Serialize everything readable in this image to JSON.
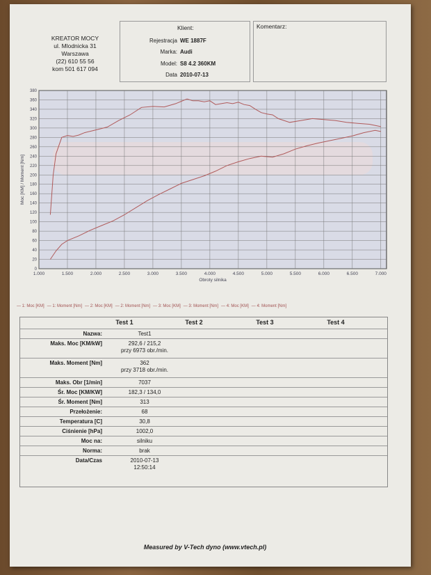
{
  "company": {
    "name": "KREATOR MOCY",
    "street": "ul. Mlodnicka 31",
    "city": "Warszawa",
    "phone": "(22) 610 55 56",
    "mobile": "kom 501 617 094"
  },
  "client": {
    "title": "Klient:",
    "rows": [
      {
        "label": "Rejestracja",
        "value": "WE 1887F"
      },
      {
        "label": "Marka:",
        "value": "Audi"
      },
      {
        "label": "Model:",
        "value": "S8 4.2 360KM"
      },
      {
        "label": "Data",
        "value": "2010-07-13"
      }
    ]
  },
  "comment_label": "Komentarz:",
  "chart_data": {
    "type": "line",
    "xlabel": "Obroty silnika",
    "ylabel": "Moc [KM] / Moment [Nm]",
    "xlim": [
      1000,
      7100
    ],
    "ylim": [
      0,
      380
    ],
    "x_ticks": [
      "1.000",
      "1.500",
      "2.000",
      "2.500",
      "3.000",
      "3.500",
      "4.000",
      "4.500",
      "5.000",
      "5.500",
      "6.000",
      "6.500",
      "7.000"
    ],
    "y_ticks": [
      0,
      20,
      40,
      60,
      80,
      100,
      120,
      140,
      160,
      180,
      200,
      220,
      240,
      260,
      280,
      300,
      320,
      340,
      360,
      380
    ],
    "grid": true,
    "series": [
      {
        "name": "1: Moment [Nm]",
        "color": "#b05a5a",
        "x": [
          1200,
          1250,
          1300,
          1400,
          1500,
          1600,
          1700,
          1800,
          1900,
          2000,
          2200,
          2400,
          2600,
          2800,
          3000,
          3200,
          3400,
          3500,
          3600,
          3700,
          3800,
          3900,
          4000,
          4100,
          4200,
          4300,
          4400,
          4500,
          4600,
          4700,
          4800,
          4900,
          5000,
          5100,
          5200,
          5400,
          5600,
          5800,
          6000,
          6200,
          6400,
          6600,
          6800,
          7000
        ],
        "y": [
          115,
          200,
          245,
          280,
          284,
          282,
          285,
          290,
          293,
          296,
          302,
          316,
          328,
          344,
          346,
          345,
          352,
          357,
          362,
          358,
          358,
          356,
          358,
          350,
          352,
          354,
          352,
          355,
          350,
          348,
          340,
          333,
          330,
          328,
          320,
          312,
          316,
          320,
          318,
          316,
          312,
          310,
          308,
          303
        ]
      },
      {
        "name": "1: Moc [KM]",
        "color": "#b05a5a",
        "x": [
          1200,
          1300,
          1400,
          1500,
          1700,
          1900,
          2100,
          2300,
          2500,
          2700,
          2900,
          3100,
          3300,
          3500,
          3700,
          3900,
          4100,
          4300,
          4500,
          4700,
          4900,
          5100,
          5300,
          5500,
          5700,
          5900,
          6100,
          6300,
          6500,
          6700,
          6900,
          7000
        ],
        "y": [
          20,
          38,
          52,
          60,
          70,
          82,
          92,
          102,
          115,
          130,
          145,
          158,
          170,
          182,
          190,
          198,
          208,
          220,
          228,
          235,
          240,
          238,
          245,
          255,
          262,
          268,
          273,
          278,
          283,
          290,
          295,
          292.6
        ]
      }
    ]
  },
  "legend": [
    "1: Moc [KM]",
    "1: Moment [Nm]",
    "2: Moc [KM]",
    "2: Moment [Nm]",
    "3: Moc [KM]",
    "3: Moment [Nm]",
    "4: Moc [KM]",
    "4: Moment [Nm]"
  ],
  "results": {
    "headers": [
      "Test 1",
      "Test 2",
      "Test 3",
      "Test 4"
    ],
    "rows": [
      {
        "label": "Nazwa:",
        "value": "Test1"
      },
      {
        "label": "Maks. Moc [KM/kW]",
        "value": "292,6 / 215,2\nprzy 6973 obr./min."
      },
      {
        "label": "Maks. Moment [Nm]",
        "value": "362\nprzy 3718 obr./min."
      },
      {
        "label": "Maks. Obr [1/min]",
        "value": "7037"
      },
      {
        "label": "Śr. Moc [KM/KW]",
        "value": "182,3 / 134,0"
      },
      {
        "label": "Śr. Moment [Nm]",
        "value": "313"
      },
      {
        "label": "Przełożenie:",
        "value": "68"
      },
      {
        "label": "Temperatura [C]",
        "value": "30,8"
      },
      {
        "label": "Ciśnienie [hPa]",
        "value": "1002,0"
      },
      {
        "label": "Moc na:",
        "value": "silniku"
      },
      {
        "label": "Norma:",
        "value": "brak"
      },
      {
        "label": "Data/Czas",
        "value": "2010-07-13\n12:50:14"
      }
    ]
  },
  "footer": "Measured by V-Tech dyno (www.vtech.pl)"
}
